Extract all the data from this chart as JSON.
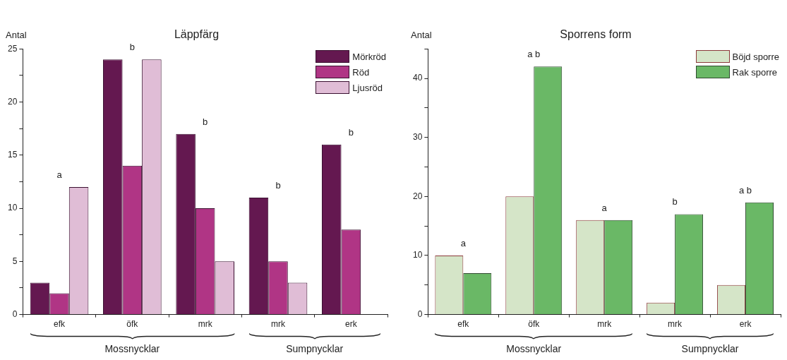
{
  "chart_data": [
    {
      "type": "bar",
      "title": "Läppfärg",
      "ylabel": "Antal",
      "legend": "top right",
      "categories": [
        "efk",
        "öfk",
        "mrk",
        "mrk",
        "erk"
      ],
      "series": [
        {
          "name": "Mörkröd",
          "color": "#641850",
          "values": [
            3,
            24,
            17,
            11,
            16
          ]
        },
        {
          "name": "Röd",
          "color": "#b03585",
          "values": [
            2,
            14,
            10,
            5,
            8
          ]
        },
        {
          "name": "Ljusröd",
          "color": "#e0bdd6",
          "values": [
            12,
            24,
            5,
            3,
            null
          ]
        }
      ],
      "ylim": [
        0,
        25
      ],
      "yticks": [
        0,
        {
          "value": 2.5,
          "label": null
        },
        5,
        {
          "value": 7.5,
          "label": null
        },
        10,
        {
          "value": 12.5,
          "label": null
        },
        15,
        {
          "value": 17.5,
          "label": null
        },
        20,
        {
          "value": 22.5,
          "label": null
        },
        25
      ],
      "annotations": [
        "a",
        "b",
        "b",
        "b",
        "b",
        "Mossnycklar",
        "Sumpnycklar"
      ]
    },
    {
      "type": "bar",
      "title": "Sporrens form",
      "ylabel": "Antal",
      "legend": "top right",
      "categories": [
        "efk",
        "öfk",
        "mrk",
        "mrk",
        "erk"
      ],
      "series": [
        {
          "name": "Böjd sporre",
          "color": "#d5e5c8",
          "values": [
            10,
            20,
            16,
            2,
            5
          ]
        },
        {
          "name": "Rak sporre",
          "color": "#6ab866",
          "values": [
            7,
            42,
            16,
            17,
            19
          ]
        }
      ],
      "ylim": [
        0,
        45
      ],
      "yticks": [
        0,
        {
          "value": 5,
          "label": null
        },
        10,
        {
          "value": 15,
          "label": null
        },
        20,
        {
          "value": 25,
          "label": null
        },
        30,
        {
          "value": 35,
          "label": null
        },
        40,
        {
          "value": 45,
          "label": null
        }
      ],
      "annotations": [
        "a",
        "a b",
        "a",
        "b",
        "a b",
        "Mossnycklar",
        "Sumpnycklar"
      ]
    }
  ]
}
